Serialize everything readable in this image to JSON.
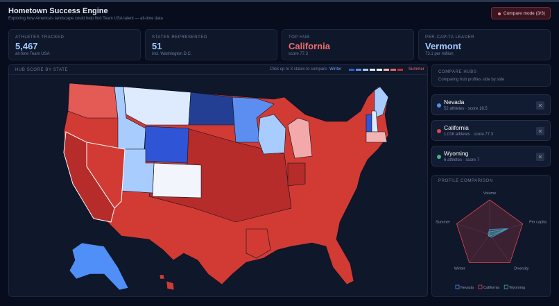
{
  "header": {
    "title": "Hometown Success Engine",
    "subtitle": "Exploring how America's landscape could help find Team USA talent — all-time data",
    "button": "Compare mode (3/3)"
  },
  "stats": [
    {
      "label": "ATHLETES TRACKED",
      "value": "5,467",
      "sub": "all-time Team USA"
    },
    {
      "label": "STATES REPRESENTED",
      "value": "51",
      "sub": "incl. Washington D.C."
    },
    {
      "label": "TOP HUB",
      "value": "California",
      "sub": "score 77.3"
    },
    {
      "label": "PER-CAPITA LEADER",
      "value": "Vermont",
      "sub": "73.1 per million"
    }
  ],
  "map": {
    "title": "HUB SCORE BY STATE",
    "hint": "Click up to 3 states to compare",
    "legend_low": "Winter",
    "legend_high": "Summer"
  },
  "compare": {
    "title": "COMPARE HUBS",
    "subtitle": "Comparing hub profiles side by side",
    "hubs": [
      {
        "name": "Nevada",
        "detail": "52 athletes · score 18.5",
        "color": "#4f8ff7"
      },
      {
        "name": "California",
        "detail": "1,016 athletes · score 77.3",
        "color": "#e0474c"
      },
      {
        "name": "Wyoming",
        "detail": "6 athletes · score 7",
        "color": "#3fb68b"
      }
    ]
  },
  "profile": {
    "title": "PROFILE COMPARISON",
    "type": "radar",
    "axes": [
      "Volume",
      "Per capita",
      "Diversity",
      "Winter",
      "Summer"
    ],
    "rlim": [
      0,
      1
    ],
    "series": [
      {
        "name": "Nevada",
        "color": "#4f8ff7",
        "values": [
          0.15,
          0.55,
          0.1,
          0.05,
          0.05
        ]
      },
      {
        "name": "California",
        "color": "#e0474c",
        "values": [
          1,
          1,
          1,
          1,
          1
        ]
      },
      {
        "name": "Wyoming",
        "color": "#3fb68b",
        "values": [
          0.08,
          0.5,
          0.05,
          0.05,
          0.02
        ]
      }
    ]
  }
}
